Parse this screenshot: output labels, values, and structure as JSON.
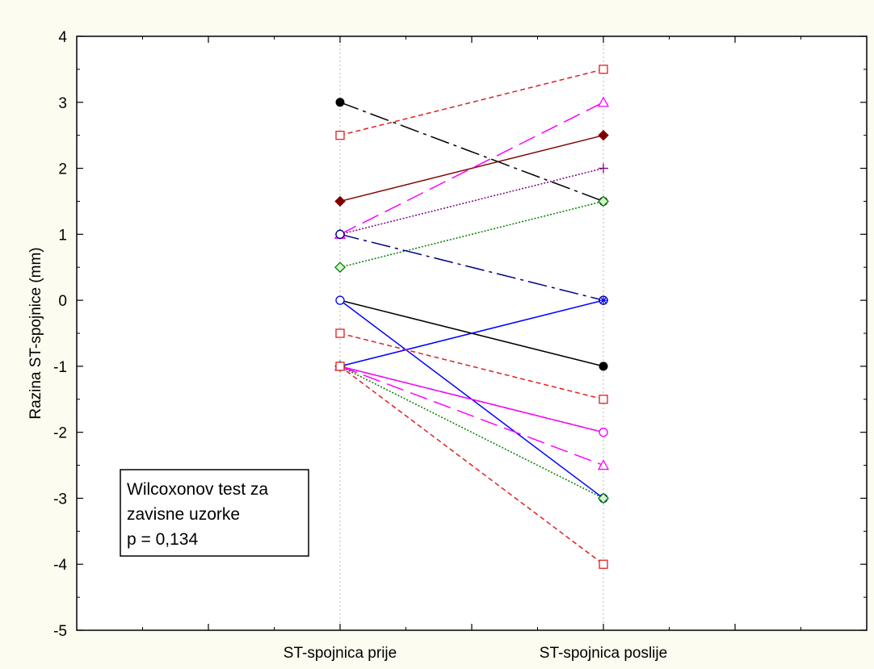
{
  "chart_data": {
    "type": "line",
    "title": "",
    "xlabel": "",
    "ylabel": "Razina ST-spojnice (mm)",
    "categories": [
      "ST-spojnica prije",
      "ST-spojnica poslije"
    ],
    "ylim": [
      -5,
      4
    ],
    "yticks": [
      -5,
      -4,
      -3,
      -2,
      -1,
      0,
      1,
      2,
      3,
      4
    ],
    "grid": {
      "vertical_at_categories": true,
      "horizontal": false
    },
    "legend": "none",
    "annotation": {
      "lines": [
        "Wilcoxonov test za",
        "zavisne uzorke",
        "p = 0,134"
      ],
      "placement": "bottom-left"
    },
    "series": [
      {
        "values": [
          3,
          1.5
        ],
        "color": "#000000",
        "dash": "long-dash-dot",
        "marker": "circle"
      },
      {
        "values": [
          2.5,
          3.5
        ],
        "color": "#e02020",
        "dash": "dash",
        "marker": "square-open"
      },
      {
        "values": [
          1.5,
          2.5
        ],
        "color": "#800000",
        "dash": "solid",
        "marker": "diamond-filled"
      },
      {
        "values": [
          1,
          3
        ],
        "color": "#ff00ff",
        "dash": "long-dash",
        "marker": "triangle-open"
      },
      {
        "values": [
          1,
          2
        ],
        "color": "#800080",
        "dash": "dot",
        "marker": "plus"
      },
      {
        "values": [
          0.5,
          1.5
        ],
        "color": "#008000",
        "dash": "dot",
        "marker": "diamond-open"
      },
      {
        "values": [
          1,
          0
        ],
        "color": "#000080",
        "dash": "long-dash-dot",
        "marker": "circle-open"
      },
      {
        "values": [
          0,
          -1
        ],
        "color": "#000000",
        "dash": "solid",
        "marker": "circle"
      },
      {
        "values": [
          0,
          -3
        ],
        "color": "#0000ff",
        "dash": "solid",
        "marker": "circle-open"
      },
      {
        "values": [
          -1,
          0
        ],
        "color": "#0000ff",
        "dash": "solid",
        "marker": "star"
      },
      {
        "values": [
          -0.5,
          -1.5
        ],
        "color": "#e02020",
        "dash": "dash",
        "marker": "square-open"
      },
      {
        "values": [
          -1,
          -2
        ],
        "color": "#008080",
        "dash": "dash-dot",
        "marker": "circle-open"
      },
      {
        "values": [
          -1,
          -2
        ],
        "color": "#ff00ff",
        "dash": "solid",
        "marker": "circle-open"
      },
      {
        "values": [
          -1,
          -2.5
        ],
        "color": "#ff00ff",
        "dash": "long-dash",
        "marker": "triangle-open"
      },
      {
        "values": [
          -1,
          -3
        ],
        "color": "#008000",
        "dash": "dot",
        "marker": "diamond-open"
      },
      {
        "values": [
          -1,
          -4
        ],
        "color": "#e02020",
        "dash": "dash",
        "marker": "square-open"
      }
    ]
  }
}
